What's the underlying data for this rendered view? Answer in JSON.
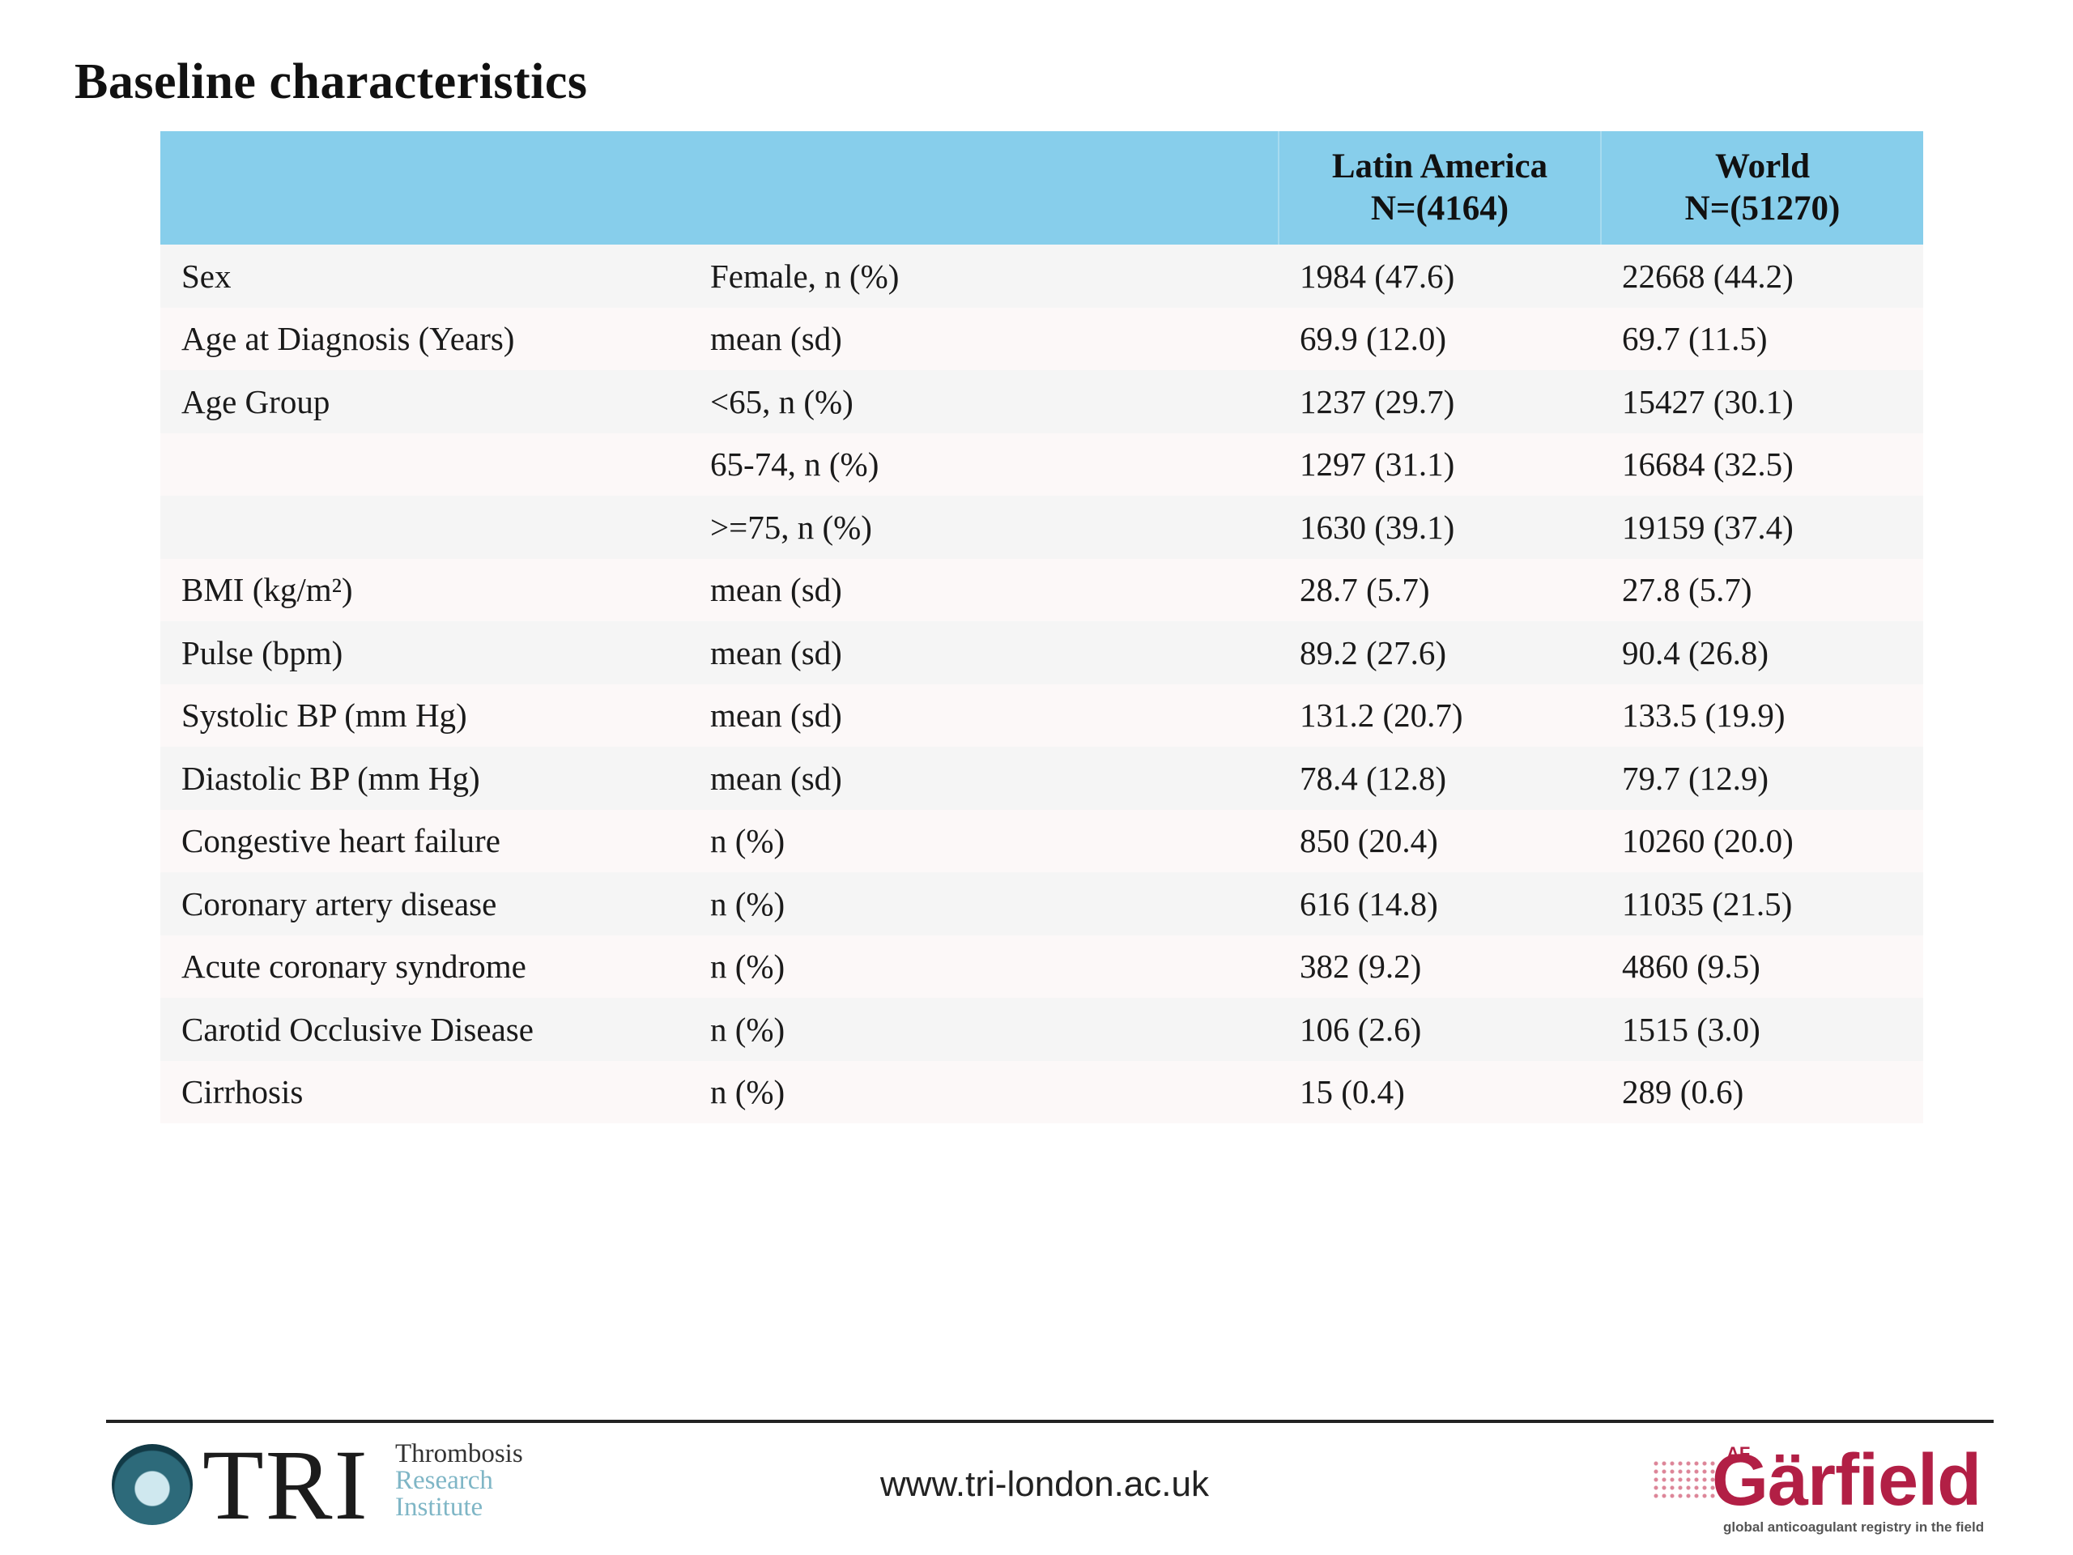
{
  "title": "Baseline characteristics",
  "table": {
    "header": {
      "col1": "",
      "col2": "",
      "latin_line1": "Latin America",
      "latin_line2": "N=(4164)",
      "world_line1": "World",
      "world_line2": "N=(51270)"
    },
    "rows": [
      [
        "Sex",
        "Female, n (%)",
        "1984 (47.6)",
        "22668 (44.2)"
      ],
      [
        "Age at Diagnosis (Years)",
        "mean (sd)",
        "69.9 (12.0)",
        "69.7 (11.5)"
      ],
      [
        "Age Group",
        "<65, n (%)",
        "1237 (29.7)",
        "15427 (30.1)"
      ],
      [
        "",
        "65-74, n (%)",
        "1297 (31.1)",
        "16684 (32.5)"
      ],
      [
        "",
        ">=75, n (%)",
        "1630 (39.1)",
        "19159 (37.4)"
      ],
      [
        "BMI (kg/m²)",
        "mean (sd)",
        "28.7 (5.7)",
        "27.8 (5.7)"
      ],
      [
        "Pulse (bpm)",
        "mean (sd)",
        "89.2 (27.6)",
        "90.4 (26.8)"
      ],
      [
        "Systolic BP (mm Hg)",
        "mean (sd)",
        "131.2 (20.7)",
        "133.5 (19.9)"
      ],
      [
        "Diastolic BP (mm Hg)",
        "mean (sd)",
        "78.4 (12.8)",
        "79.7 (12.9)"
      ],
      [
        "Congestive heart failure",
        "n (%)",
        "850 (20.4)",
        "10260 (20.0)"
      ],
      [
        "Coronary artery disease",
        "n (%)",
        "616 (14.8)",
        "11035 (21.5)"
      ],
      [
        "Acute coronary syndrome",
        "n (%)",
        "382 (9.2)",
        "4860 (9.5)"
      ],
      [
        "Carotid Occlusive Disease",
        "n (%)",
        "106 (2.6)",
        "1515 (3.0)"
      ],
      [
        "Cirrhosis",
        "n (%)",
        "15 (0.4)",
        "289 (0.6)"
      ]
    ]
  },
  "footer": {
    "tri_logo": {
      "mark": "TRI",
      "line1": "Thrombosis",
      "line2": "Research",
      "line3": "Institute"
    },
    "url": "www.tri-london.ac.uk",
    "garfield_logo": {
      "prefix": "AF",
      "name": "Gärfield",
      "tagline": "global anticoagulant registry in the field"
    }
  },
  "colors": {
    "header_bg": "#87ceeb",
    "row_odd": "#f5f5f5",
    "row_even": "#fcf8f8",
    "garfield_red": "#b21f45"
  }
}
